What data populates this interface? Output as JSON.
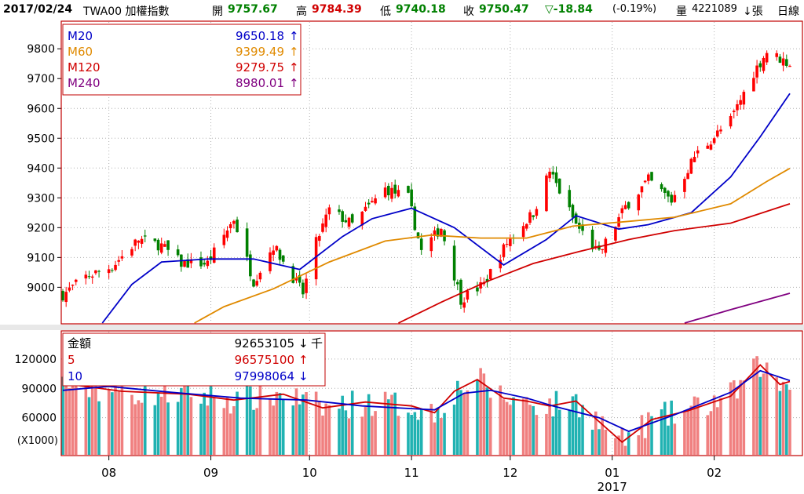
{
  "header": {
    "date": "2017/02/24",
    "symbol": "TWA00 加權指數",
    "open_label": "開",
    "open": "9757.67",
    "high_label": "高",
    "high": "9784.39",
    "low_label": "低",
    "low": "9740.18",
    "close_label": "收",
    "close": "9750.47",
    "change": "▽-18.84",
    "change_pct": "(-0.19%)",
    "volume_label": "量",
    "volume": "4221089",
    "volume_unit": "↓張",
    "period": "日線"
  },
  "legend_price": [
    {
      "name": "M20",
      "value": "9650.18",
      "arrow": "↑",
      "color": "#0000c8"
    },
    {
      "name": "M60",
      "value": "9399.49",
      "arrow": "↑",
      "color": "#e08a00"
    },
    {
      "name": "M120",
      "value": "9279.75",
      "arrow": "↑",
      "color": "#d00000"
    },
    {
      "name": "M240",
      "value": "8980.01",
      "arrow": "↑",
      "color": "#800080"
    }
  ],
  "legend_volume": [
    {
      "name": "金額",
      "value": "92653105",
      "arrow": "↓",
      "unit": "千",
      "color": "#000000"
    },
    {
      "name": "5",
      "value": "96575100",
      "arrow": "↑",
      "unit": "",
      "color": "#d00000"
    },
    {
      "name": "10",
      "value": "97998064",
      "arrow": "↓",
      "unit": "",
      "color": "#0000c8"
    }
  ],
  "volume_unit_note": "(X1000)",
  "colors": {
    "up": "#ff0000",
    "down": "#008000",
    "vol_up": "#f08080",
    "vol_down": "#20b2b2",
    "frame": "#c00000"
  },
  "chart_data": [
    {
      "type": "candlestick",
      "ylim": [
        8880,
        9890
      ],
      "yticks": [
        9000,
        9100,
        9200,
        9300,
        9400,
        9500,
        9600,
        9700,
        9800
      ],
      "xticks": [
        {
          "label": "08",
          "date": "2016-08-01"
        },
        {
          "label": "09",
          "date": "2016-09-01"
        },
        {
          "label": "10",
          "date": "2016-10-01"
        },
        {
          "label": "11",
          "date": "2016-11-01"
        },
        {
          "label": "12",
          "date": "2016-12-01"
        },
        {
          "label": "01",
          "date": "2017-01-01"
        },
        {
          "label": "02",
          "date": "2017-02-01"
        }
      ],
      "year_label": "2017",
      "anchors": [
        {
          "date": "2016-07-18",
          "close": 8975
        },
        {
          "date": "2016-07-25",
          "close": 9035
        },
        {
          "date": "2016-08-02",
          "close": 9070
        },
        {
          "date": "2016-08-10",
          "close": 9160
        },
        {
          "date": "2016-08-17",
          "close": 9140
        },
        {
          "date": "2016-08-23",
          "close": 9080
        },
        {
          "date": "2016-08-31",
          "close": 9080
        },
        {
          "date": "2016-09-08",
          "close": 9230
        },
        {
          "date": "2016-09-14",
          "close": 9020
        },
        {
          "date": "2016-09-20",
          "close": 9140
        },
        {
          "date": "2016-09-29",
          "close": 8980
        },
        {
          "date": "2016-10-03",
          "close": 9150
        },
        {
          "date": "2016-10-07",
          "close": 9260
        },
        {
          "date": "2016-10-14",
          "close": 9210
        },
        {
          "date": "2016-10-24",
          "close": 9330
        },
        {
          "date": "2016-10-31",
          "close": 9300
        },
        {
          "date": "2016-11-04",
          "close": 9120
        },
        {
          "date": "2016-11-10",
          "close": 9200
        },
        {
          "date": "2016-11-16",
          "close": 8960
        },
        {
          "date": "2016-11-23",
          "close": 9010
        },
        {
          "date": "2016-11-30",
          "close": 9150
        },
        {
          "date": "2016-12-08",
          "close": 9250
        },
        {
          "date": "2016-12-13",
          "close": 9390
        },
        {
          "date": "2016-12-21",
          "close": 9210
        },
        {
          "date": "2016-12-28",
          "close": 9110
        },
        {
          "date": "2017-01-05",
          "close": 9270
        },
        {
          "date": "2017-01-12",
          "close": 9360
        },
        {
          "date": "2017-01-19",
          "close": 9290
        },
        {
          "date": "2017-01-26",
          "close": 9440
        },
        {
          "date": "2017-02-06",
          "close": 9560
        },
        {
          "date": "2017-02-13",
          "close": 9720
        },
        {
          "date": "2017-02-17",
          "close": 9790
        },
        {
          "date": "2017-02-24",
          "close": 9750
        }
      ],
      "series": [
        {
          "name": "M20",
          "color": "#0000c8",
          "points": [
            [
              "2016-07-30",
              8880
            ],
            [
              "2016-08-08",
              9010
            ],
            [
              "2016-08-17",
              9085
            ],
            [
              "2016-08-31",
              9095
            ],
            [
              "2016-09-14",
              9095
            ],
            [
              "2016-09-28",
              9060
            ],
            [
              "2016-10-11",
              9170
            ],
            [
              "2016-10-20",
              9230
            ],
            [
              "2016-11-01",
              9265
            ],
            [
              "2016-11-14",
              9200
            ],
            [
              "2016-11-29",
              9075
            ],
            [
              "2016-12-12",
              9160
            ],
            [
              "2016-12-21",
              9240
            ],
            [
              "2017-01-03",
              9195
            ],
            [
              "2017-01-12",
              9210
            ],
            [
              "2017-01-25",
              9250
            ],
            [
              "2017-02-06",
              9370
            ],
            [
              "2017-02-15",
              9505
            ],
            [
              "2017-02-24",
              9650
            ]
          ]
        },
        {
          "name": "M60",
          "color": "#e08a00",
          "points": [
            [
              "2016-08-27",
              8880
            ],
            [
              "2016-09-05",
              8935
            ],
            [
              "2016-09-20",
              8995
            ],
            [
              "2016-10-07",
              9085
            ],
            [
              "2016-10-24",
              9155
            ],
            [
              "2016-11-07",
              9175
            ],
            [
              "2016-11-22",
              9165
            ],
            [
              "2016-12-06",
              9165
            ],
            [
              "2016-12-20",
              9205
            ],
            [
              "2017-01-05",
              9220
            ],
            [
              "2017-01-20",
              9235
            ],
            [
              "2017-02-06",
              9280
            ],
            [
              "2017-02-17",
              9355
            ],
            [
              "2017-02-24",
              9399
            ]
          ]
        },
        {
          "name": "M120",
          "color": "#d00000",
          "points": [
            [
              "2016-10-28",
              8880
            ],
            [
              "2016-11-10",
              8950
            ],
            [
              "2016-11-24",
              9020
            ],
            [
              "2016-12-08",
              9080
            ],
            [
              "2016-12-22",
              9120
            ],
            [
              "2017-01-06",
              9160
            ],
            [
              "2017-01-20",
              9190
            ],
            [
              "2017-02-06",
              9215
            ],
            [
              "2017-02-24",
              9280
            ]
          ]
        },
        {
          "name": "M240",
          "color": "#800080",
          "points": [
            [
              "2017-01-23",
              8880
            ],
            [
              "2017-02-06",
              8925
            ],
            [
              "2017-02-24",
              8980
            ]
          ]
        }
      ]
    },
    {
      "type": "bar",
      "ylim": [
        22000,
        148000
      ],
      "yticks": [
        60000,
        90000,
        120000
      ],
      "unit": "(X1000)",
      "series": [
        {
          "name": "5",
          "color": "#d00000",
          "points": [
            [
              "2016-07-18",
              95000
            ],
            [
              "2016-08-05",
              87000
            ],
            [
              "2016-08-25",
              84000
            ],
            [
              "2016-09-08",
              78000
            ],
            [
              "2016-09-23",
              84000
            ],
            [
              "2016-10-05",
              70000
            ],
            [
              "2016-10-18",
              76000
            ],
            [
              "2016-11-01",
              72000
            ],
            [
              "2016-11-08",
              65000
            ],
            [
              "2016-11-14",
              87000
            ],
            [
              "2016-11-21",
              99000
            ],
            [
              "2016-11-29",
              80000
            ],
            [
              "2016-12-06",
              77000
            ],
            [
              "2016-12-13",
              72000
            ],
            [
              "2016-12-21",
              77000
            ],
            [
              "2017-01-04",
              35000
            ],
            [
              "2017-01-13",
              58000
            ],
            [
              "2017-01-24",
              67000
            ],
            [
              "2017-02-06",
              82000
            ],
            [
              "2017-02-15",
              114000
            ],
            [
              "2017-02-21",
              94000
            ],
            [
              "2017-02-24",
              97000
            ]
          ]
        },
        {
          "name": "10",
          "color": "#0000c8",
          "points": [
            [
              "2016-07-18",
              88000
            ],
            [
              "2016-08-01",
              92000
            ],
            [
              "2016-08-20",
              86000
            ],
            [
              "2016-09-10",
              80000
            ],
            [
              "2016-09-30",
              78000
            ],
            [
              "2016-10-17",
              72000
            ],
            [
              "2016-11-08",
              68000
            ],
            [
              "2016-11-17",
              85000
            ],
            [
              "2016-11-25",
              88000
            ],
            [
              "2016-12-06",
              80000
            ],
            [
              "2016-12-14",
              72000
            ],
            [
              "2016-12-28",
              60000
            ],
            [
              "2017-01-06",
              46000
            ],
            [
              "2017-01-20",
              63000
            ],
            [
              "2017-02-06",
              86000
            ],
            [
              "2017-02-15",
              108000
            ],
            [
              "2017-02-24",
              98000
            ]
          ]
        }
      ]
    }
  ]
}
